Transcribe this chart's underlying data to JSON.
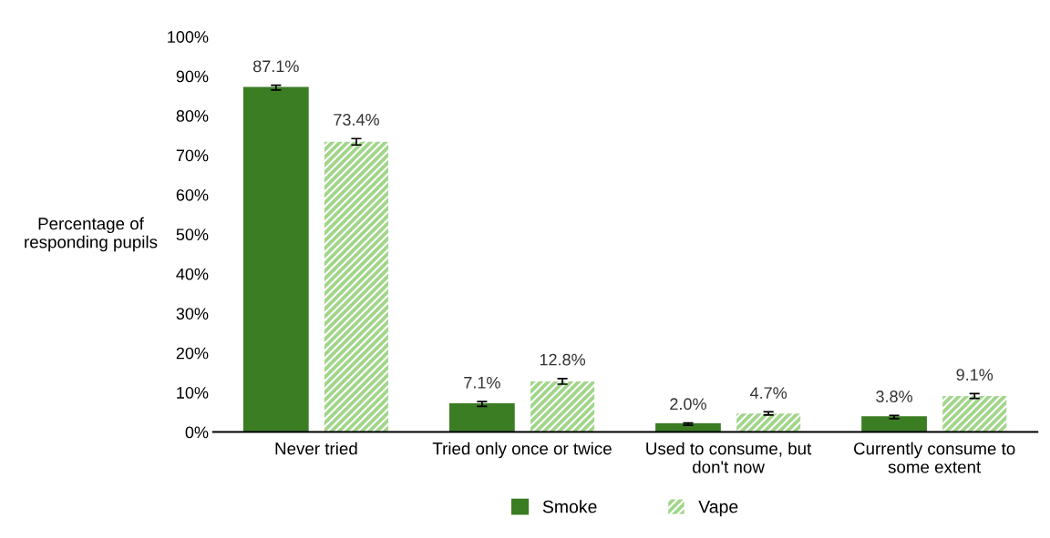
{
  "chart_data": {
    "type": "bar",
    "ylabel": "Percentage of\nresponding pupils",
    "categories": [
      "Never tried",
      "Tried only once or twice",
      "Used to consume, but\ndon't now",
      "Currently consume to\nsome extent"
    ],
    "series": [
      {
        "name": "Smoke",
        "color": "#3b7d23",
        "values": [
          87.1,
          7.1,
          2.0,
          3.8
        ],
        "errors": [
          0.6,
          0.6,
          0.3,
          0.4
        ],
        "value_labels": [
          "87.1%",
          "7.1%",
          "2.0%",
          "3.8%"
        ]
      },
      {
        "name": "Vape",
        "color": "#a1d68a",
        "values": [
          73.4,
          12.8,
          4.7,
          9.1
        ],
        "errors": [
          0.8,
          0.7,
          0.4,
          0.6
        ],
        "value_labels": [
          "73.4%",
          "12.8%",
          "4.7%",
          "9.1%"
        ]
      }
    ],
    "ylim": [
      0,
      100
    ],
    "yticks": [
      {
        "value": 0,
        "label": "0%"
      },
      {
        "value": 10,
        "label": "10%"
      },
      {
        "value": 20,
        "label": "20%"
      },
      {
        "value": 30,
        "label": "30%"
      },
      {
        "value": 40,
        "label": "40%"
      },
      {
        "value": 50,
        "label": "50%"
      },
      {
        "value": 60,
        "label": "60%"
      },
      {
        "value": 70,
        "label": "70%"
      },
      {
        "value": 80,
        "label": "80%"
      },
      {
        "value": 90,
        "label": "90%"
      },
      {
        "value": 100,
        "label": "100%"
      }
    ],
    "grid": false,
    "legend": "bottom"
  }
}
